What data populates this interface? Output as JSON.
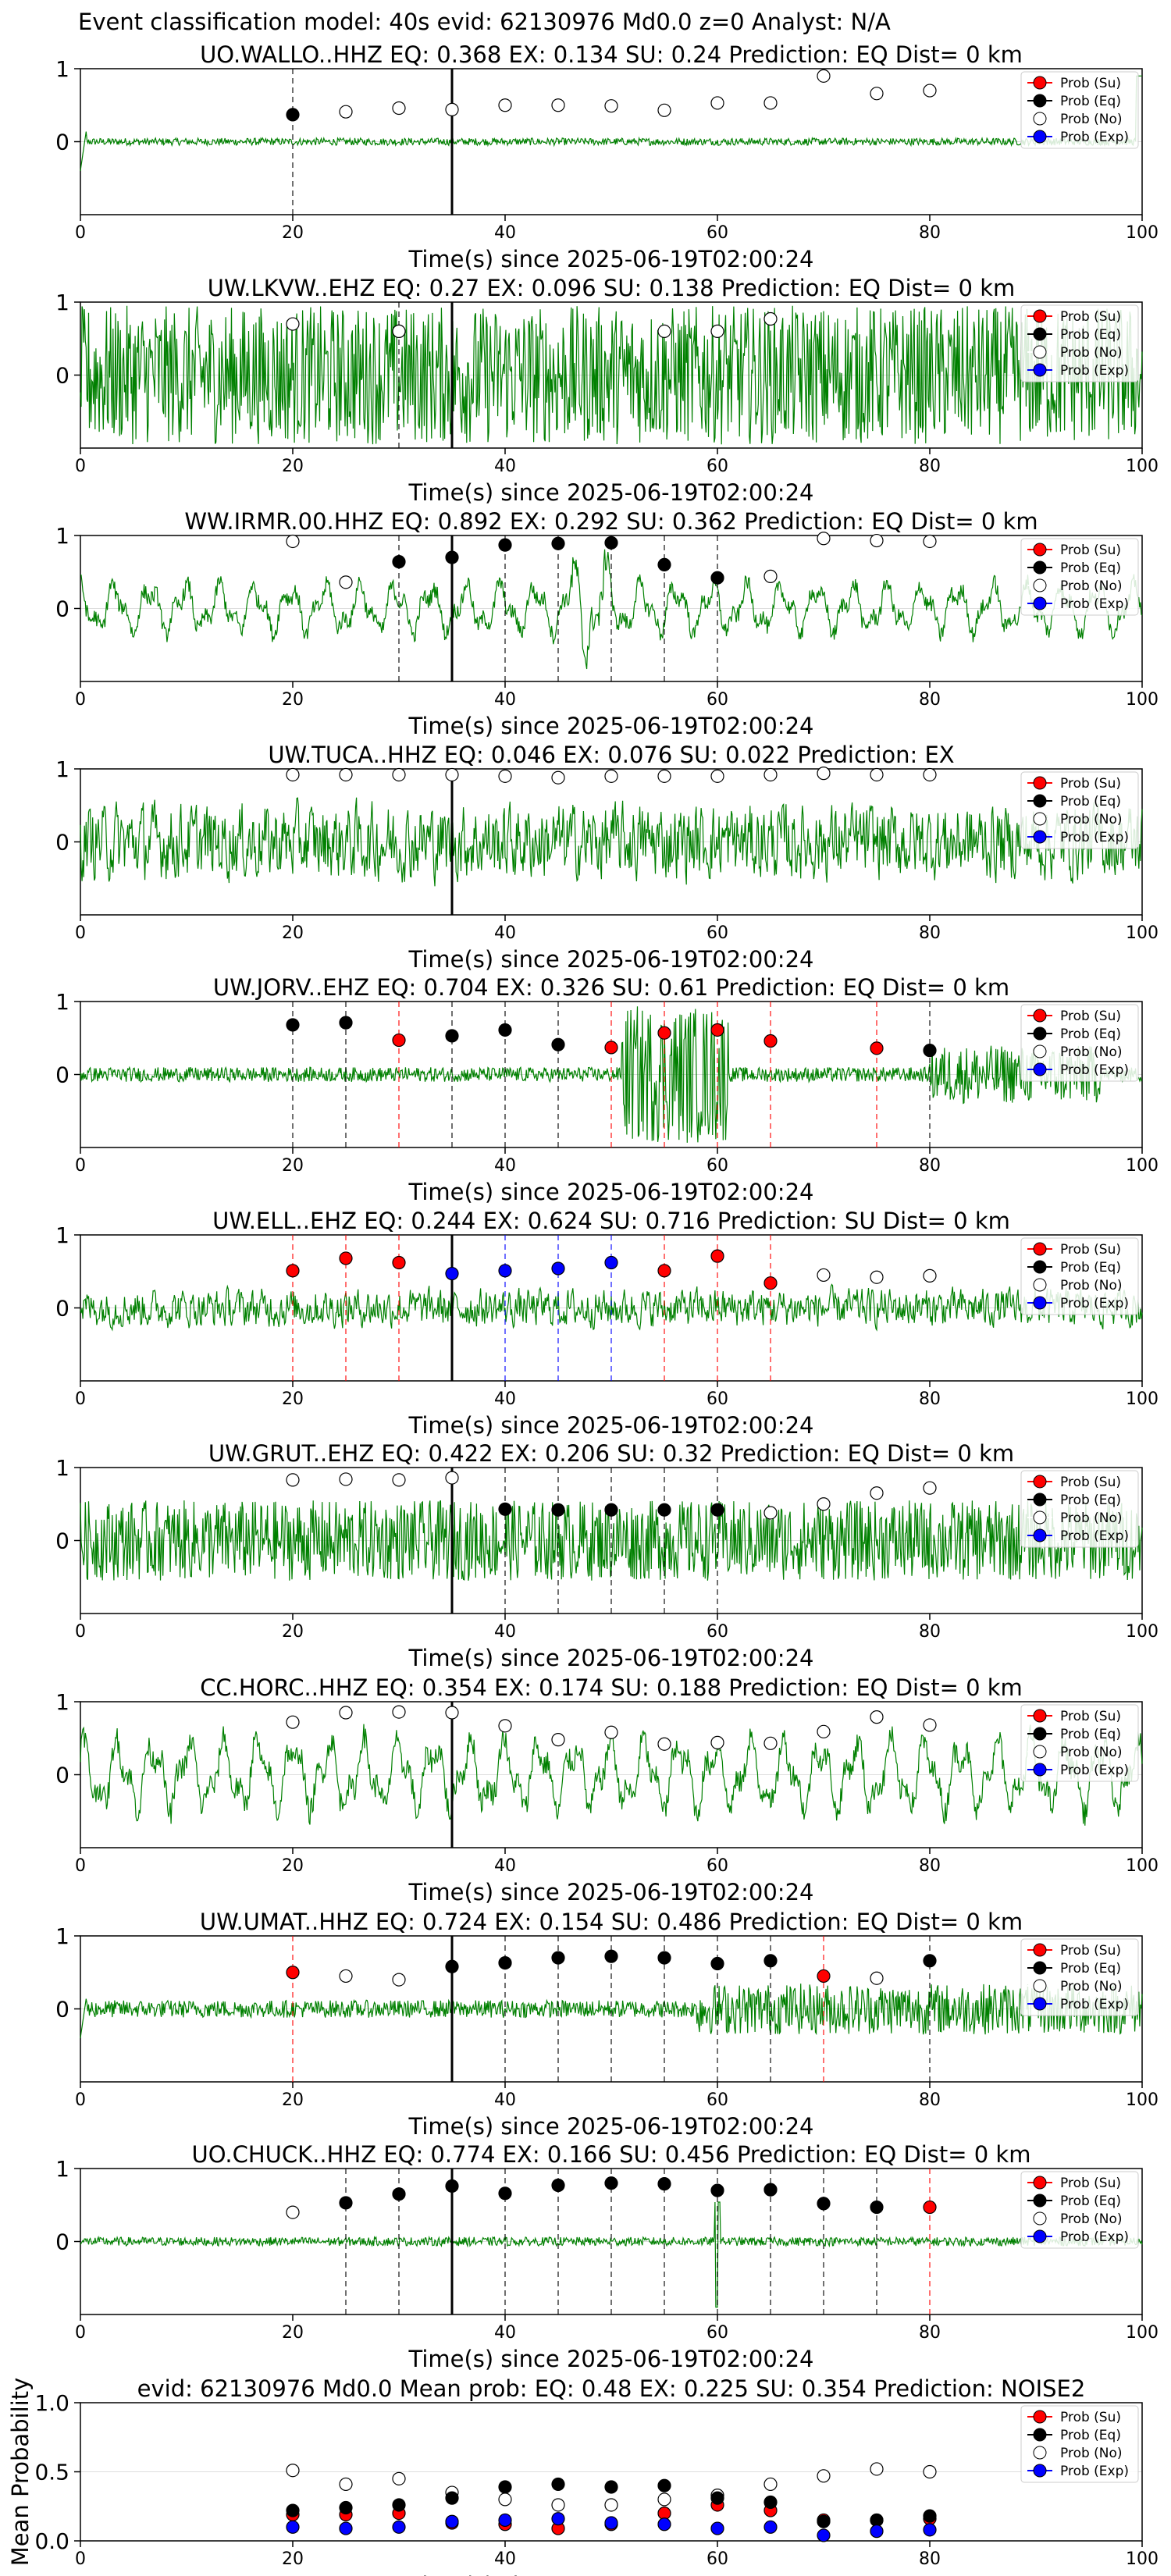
{
  "figure_title": "Event classification model: 40s evid: 62130976 Md0.0 z=0 Analyst: N/A",
  "xlabel": "Time(s) since 2025-06-19T02:00:24",
  "legend": [
    "Prob (Su)",
    "Prob (Eq)",
    "Prob (No)",
    "Prob (Exp)"
  ],
  "colors": {
    "su": "#ff0000",
    "eq": "#000000",
    "no": "#ffffff",
    "exp": "#0000ff",
    "trace": "#008000"
  },
  "window_times": [
    20,
    25,
    30,
    35,
    40,
    45,
    50,
    55,
    60,
    65,
    70,
    75,
    80
  ],
  "x_ticks": [
    0,
    20,
    40,
    60,
    80,
    100
  ],
  "chart_data": [
    {
      "type": "line",
      "title": "UO.WALLO..HHZ   EQ: 0.368  EX: 0.134  SU: 0.24   Prediction: EQ    Dist= 0 km",
      "xlim": [
        0,
        100
      ],
      "ylim": [
        -1,
        1
      ],
      "yticks": [
        0,
        1
      ],
      "marker_time": 35,
      "trace": {
        "amp": 0.05,
        "style": "quiet",
        "edge": "both"
      },
      "points": [
        [
          20,
          "eq",
          0.37
        ],
        [
          25,
          "no",
          0.41
        ],
        [
          30,
          "no",
          0.46
        ],
        [
          35,
          "no",
          0.44
        ],
        [
          40,
          "no",
          0.5
        ],
        [
          45,
          "no",
          0.5
        ],
        [
          50,
          "no",
          0.49
        ],
        [
          55,
          "no",
          0.43
        ],
        [
          60,
          "no",
          0.53
        ],
        [
          65,
          "no",
          0.53
        ],
        [
          70,
          "no",
          0.9
        ],
        [
          75,
          "no",
          0.66
        ],
        [
          80,
          "no",
          0.7
        ]
      ]
    },
    {
      "type": "line",
      "title": "UW.LKVW..EHZ   EQ: 0.27  EX: 0.096  SU: 0.138   Prediction: EQ    Dist= 0 km",
      "xlim": [
        0,
        100
      ],
      "ylim": [
        -1,
        1
      ],
      "yticks": [
        0,
        1
      ],
      "marker_time": 35,
      "trace": {
        "amp": 0.95,
        "style": "dense"
      },
      "points": [
        [
          20,
          "no",
          0.7
        ],
        [
          30,
          "eq",
          0.6
        ],
        [
          30,
          "no",
          0.6
        ],
        [
          55,
          "no",
          0.6
        ],
        [
          60,
          "no",
          0.6
        ],
        [
          65,
          "no",
          0.77
        ]
      ]
    },
    {
      "type": "line",
      "title": "WW.IRMR.00.HHZ   EQ: 0.892  EX: 0.292  SU: 0.362   Prediction: EQ    Dist= 0 km",
      "xlim": [
        0,
        100
      ],
      "ylim": [
        -1,
        1
      ],
      "yticks": [
        0,
        1
      ],
      "marker_time": 35,
      "trace": {
        "amp": 0.45,
        "style": "wave",
        "burst": [
          46,
          50,
          0.9
        ]
      },
      "points": [
        [
          20,
          "no",
          0.92
        ],
        [
          25,
          "no",
          0.36
        ],
        [
          30,
          "eq",
          0.64
        ],
        [
          35,
          "eq",
          0.7
        ],
        [
          40,
          "eq",
          0.87
        ],
        [
          45,
          "eq",
          0.89
        ],
        [
          50,
          "eq",
          0.9
        ],
        [
          55,
          "eq",
          0.6
        ],
        [
          60,
          "eq",
          0.42
        ],
        [
          65,
          "no",
          0.44
        ],
        [
          70,
          "no",
          0.96
        ],
        [
          75,
          "no",
          0.93
        ],
        [
          80,
          "no",
          0.92
        ]
      ]
    },
    {
      "type": "line",
      "title": "UW.TUCA..HHZ   EQ: 0.046  EX: 0.076  SU: 0.022   Prediction: EX",
      "xlim": [
        0,
        100
      ],
      "ylim": [
        -1,
        1
      ],
      "yticks": [
        0,
        1
      ],
      "marker_time": 35,
      "trace": {
        "amp": 0.6,
        "style": "noisy"
      },
      "points": [
        [
          20,
          "no",
          0.92
        ],
        [
          25,
          "no",
          0.92
        ],
        [
          30,
          "no",
          0.92
        ],
        [
          35,
          "no",
          0.92
        ],
        [
          40,
          "no",
          0.9
        ],
        [
          45,
          "no",
          0.88
        ],
        [
          50,
          "no",
          0.9
        ],
        [
          55,
          "no",
          0.9
        ],
        [
          60,
          "no",
          0.9
        ],
        [
          65,
          "no",
          0.92
        ],
        [
          70,
          "no",
          0.94
        ],
        [
          75,
          "no",
          0.92
        ],
        [
          80,
          "no",
          0.92
        ]
      ]
    },
    {
      "type": "line",
      "title": "UW.JORV..EHZ   EQ: 0.704  EX: 0.326  SU: 0.61   Prediction: EQ    Dist= 0 km",
      "xlim": [
        0,
        100
      ],
      "ylim": [
        -1,
        1
      ],
      "yticks": [
        0,
        1
      ],
      "marker_time": null,
      "trace": {
        "amp": 0.1,
        "style": "quiet",
        "burst": [
          51,
          61,
          0.95
        ],
        "burst2": [
          80,
          96,
          0.4
        ]
      },
      "points": [
        [
          20,
          "eq",
          0.68
        ],
        [
          25,
          "eq",
          0.71
        ],
        [
          30,
          "su",
          0.47
        ],
        [
          35,
          "eq",
          0.53
        ],
        [
          40,
          "eq",
          0.61
        ],
        [
          45,
          "eq",
          0.41
        ],
        [
          50,
          "su",
          0.37
        ],
        [
          55,
          "su",
          0.57
        ],
        [
          60,
          "su",
          0.61
        ],
        [
          65,
          "su",
          0.46
        ],
        [
          75,
          "su",
          0.36
        ],
        [
          80,
          "eq",
          0.33
        ]
      ]
    },
    {
      "type": "line",
      "title": "UW.ELL..EHZ   EQ: 0.244  EX: 0.624  SU: 0.716   Prediction: SU    Dist= 0 km",
      "xlim": [
        0,
        100
      ],
      "ylim": [
        -1,
        1
      ],
      "yticks": [
        0,
        1
      ],
      "marker_time": 35,
      "trace": {
        "amp": 0.3,
        "style": "noisy"
      },
      "points": [
        [
          20,
          "su",
          0.51
        ],
        [
          25,
          "su",
          0.68
        ],
        [
          30,
          "su",
          0.62
        ],
        [
          35,
          "exp",
          0.47
        ],
        [
          40,
          "exp",
          0.51
        ],
        [
          45,
          "exp",
          0.54
        ],
        [
          50,
          "exp",
          0.62
        ],
        [
          55,
          "su",
          0.51
        ],
        [
          60,
          "su",
          0.71
        ],
        [
          65,
          "su",
          0.34
        ],
        [
          70,
          "no",
          0.45
        ],
        [
          75,
          "no",
          0.42
        ],
        [
          80,
          "no",
          0.44
        ]
      ]
    },
    {
      "type": "line",
      "title": "UW.GRUT..EHZ   EQ: 0.422  EX: 0.206  SU: 0.32   Prediction: EQ    Dist= 0 km",
      "xlim": [
        0,
        100
      ],
      "ylim": [
        -1,
        1
      ],
      "yticks": [
        0,
        1
      ],
      "marker_time": 35,
      "trace": {
        "amp": 0.55,
        "style": "dense"
      },
      "points": [
        [
          20,
          "no",
          0.83
        ],
        [
          25,
          "no",
          0.84
        ],
        [
          30,
          "no",
          0.83
        ],
        [
          35,
          "no",
          0.86
        ],
        [
          40,
          "eq",
          0.43
        ],
        [
          45,
          "eq",
          0.42
        ],
        [
          50,
          "eq",
          0.42
        ],
        [
          55,
          "eq",
          0.42
        ],
        [
          60,
          "eq",
          0.42
        ],
        [
          65,
          "no",
          0.38
        ],
        [
          70,
          "no",
          0.5
        ],
        [
          75,
          "no",
          0.65
        ],
        [
          80,
          "no",
          0.72
        ]
      ]
    },
    {
      "type": "line",
      "title": "CC.HORC..HHZ   EQ: 0.354  EX: 0.174  SU: 0.188   Prediction: EQ    Dist= 0 km",
      "xlim": [
        0,
        100
      ],
      "ylim": [
        -1,
        1
      ],
      "yticks": [
        0,
        1
      ],
      "marker_time": 35,
      "trace": {
        "amp": 0.65,
        "style": "wave"
      },
      "points": [
        [
          20,
          "no",
          0.72
        ],
        [
          25,
          "no",
          0.85
        ],
        [
          30,
          "no",
          0.86
        ],
        [
          35,
          "no",
          0.85
        ],
        [
          40,
          "no",
          0.67
        ],
        [
          45,
          "no",
          0.48
        ],
        [
          50,
          "no",
          0.58
        ],
        [
          55,
          "no",
          0.42
        ],
        [
          60,
          "no",
          0.44
        ],
        [
          65,
          "no",
          0.43
        ],
        [
          70,
          "no",
          0.59
        ],
        [
          75,
          "no",
          0.79
        ],
        [
          80,
          "no",
          0.68
        ]
      ]
    },
    {
      "type": "line",
      "title": "UW.UMAT..HHZ   EQ: 0.724  EX: 0.154  SU: 0.486   Prediction: EQ    Dist= 0 km",
      "xlim": [
        0,
        100
      ],
      "ylim": [
        -1,
        1
      ],
      "yticks": [
        0,
        1
      ],
      "marker_time": 35,
      "trace": {
        "amp": 0.12,
        "style": "quiet",
        "burst": [
          58,
          100,
          0.35
        ],
        "edge": "left"
      },
      "points": [
        [
          20,
          "su",
          0.5
        ],
        [
          25,
          "no",
          0.45
        ],
        [
          30,
          "no",
          0.4
        ],
        [
          35,
          "eq",
          0.58
        ],
        [
          40,
          "eq",
          0.63
        ],
        [
          45,
          "eq",
          0.7
        ],
        [
          50,
          "eq",
          0.72
        ],
        [
          55,
          "eq",
          0.7
        ],
        [
          60,
          "eq",
          0.62
        ],
        [
          65,
          "eq",
          0.66
        ],
        [
          70,
          "su",
          0.45
        ],
        [
          75,
          "no",
          0.42
        ],
        [
          80,
          "eq",
          0.66
        ]
      ]
    },
    {
      "type": "line",
      "title": "UO.CHUCK..HHZ   EQ: 0.774  EX: 0.166  SU: 0.456   Prediction: EQ    Dist= 0 km",
      "xlim": [
        0,
        100
      ],
      "ylim": [
        -1,
        1
      ],
      "yticks": [
        0,
        1
      ],
      "marker_time": 35,
      "trace": {
        "amp": 0.06,
        "style": "quiet",
        "spike": [
          60,
          0.9
        ]
      },
      "points": [
        [
          20,
          "no",
          0.4
        ],
        [
          25,
          "eq",
          0.53
        ],
        [
          30,
          "eq",
          0.65
        ],
        [
          35,
          "eq",
          0.76
        ],
        [
          40,
          "eq",
          0.66
        ],
        [
          45,
          "eq",
          0.77
        ],
        [
          50,
          "eq",
          0.8
        ],
        [
          55,
          "eq",
          0.79
        ],
        [
          60,
          "eq",
          0.7
        ],
        [
          65,
          "eq",
          0.71
        ],
        [
          70,
          "eq",
          0.52
        ],
        [
          75,
          "eq",
          0.47
        ],
        [
          80,
          "su",
          0.47
        ]
      ]
    },
    {
      "type": "scatter",
      "title": "evid: 62130976  Md0.0   Mean prob:   EQ: 0.48  EX: 0.225  SU: 0.354   Prediction: NOISE2",
      "ylabel": "Mean Probability",
      "xlim": [
        0,
        100
      ],
      "ylim": [
        0,
        1
      ],
      "yticks": [
        0.0,
        0.5,
        1.0
      ],
      "ytick_labels": [
        "0.0",
        "0.5",
        "1.0"
      ],
      "series": [
        {
          "key": "no",
          "values": [
            0.51,
            0.41,
            0.45,
            0.35,
            0.3,
            0.26,
            0.26,
            0.3,
            0.33,
            0.41,
            0.47,
            0.52,
            0.5
          ]
        },
        {
          "key": "su",
          "values": [
            0.19,
            0.19,
            0.2,
            0.13,
            0.12,
            0.09,
            0.12,
            0.2,
            0.26,
            0.22,
            0.15,
            0.15,
            0.16
          ]
        },
        {
          "key": "eq",
          "values": [
            0.22,
            0.24,
            0.26,
            0.31,
            0.39,
            0.41,
            0.39,
            0.4,
            0.31,
            0.28,
            0.14,
            0.15,
            0.18
          ]
        },
        {
          "key": "exp",
          "values": [
            0.1,
            0.09,
            0.1,
            0.14,
            0.15,
            0.16,
            0.13,
            0.12,
            0.09,
            0.1,
            0.04,
            0.07,
            0.08
          ]
        }
      ]
    }
  ]
}
